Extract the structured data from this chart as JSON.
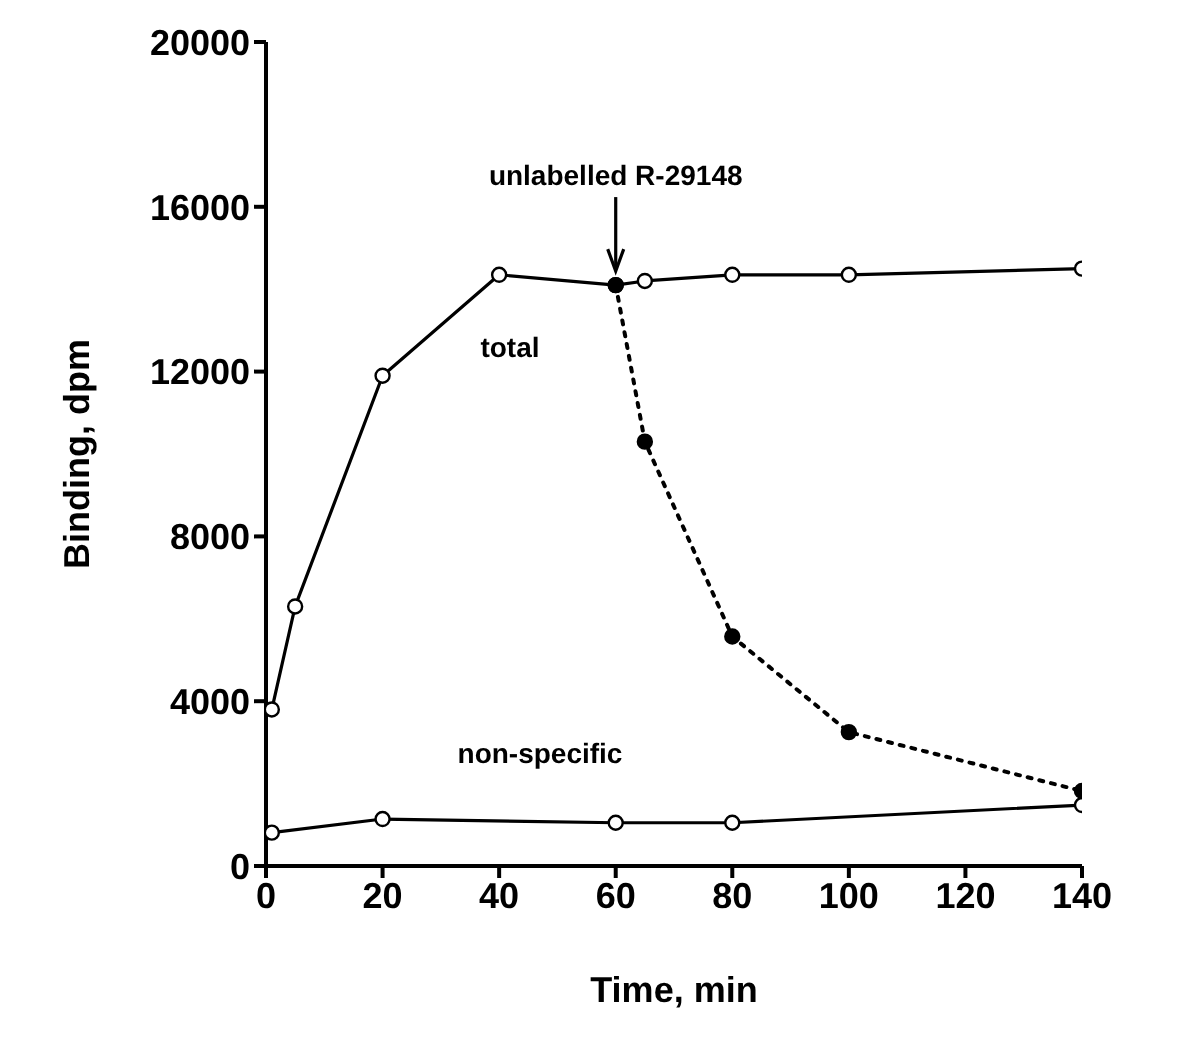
{
  "chart_data": {
    "type": "line",
    "xlabel": "Time, min",
    "ylabel": "Binding, dpm",
    "xlim": [
      0,
      140
    ],
    "xticks": [
      0,
      20,
      40,
      60,
      80,
      100,
      120,
      140
    ],
    "ylim": [
      0,
      20000
    ],
    "yticks": [
      0,
      4000,
      8000,
      12000,
      16000,
      20000
    ],
    "grid": false,
    "legend": false,
    "marker": "circle",
    "series": [
      {
        "color": "#000000",
        "line_style": "solid",
        "x": [
          1,
          5,
          20,
          40,
          60,
          65,
          80,
          100,
          140
        ],
        "values": [
          3800,
          6300,
          11900,
          14350,
          14100,
          14200,
          14350,
          14350,
          14500
        ]
      },
      {
        "color": "#000000",
        "line_style": "solid",
        "x": [
          1,
          20,
          60,
          80,
          140
        ],
        "values": [
          810,
          1140,
          1050,
          1050,
          1480
        ]
      },
      {
        "color": "#000000",
        "line_style": "dotted",
        "x": [
          60,
          65,
          80,
          100,
          140
        ],
        "values": [
          14100,
          10300,
          5570,
          3250,
          1820
        ]
      }
    ],
    "annotations": [
      "total",
      "non-specific",
      {
        "text": "unlabelled R-29148",
        "x": 60,
        "y": 14100
      }
    ]
  }
}
